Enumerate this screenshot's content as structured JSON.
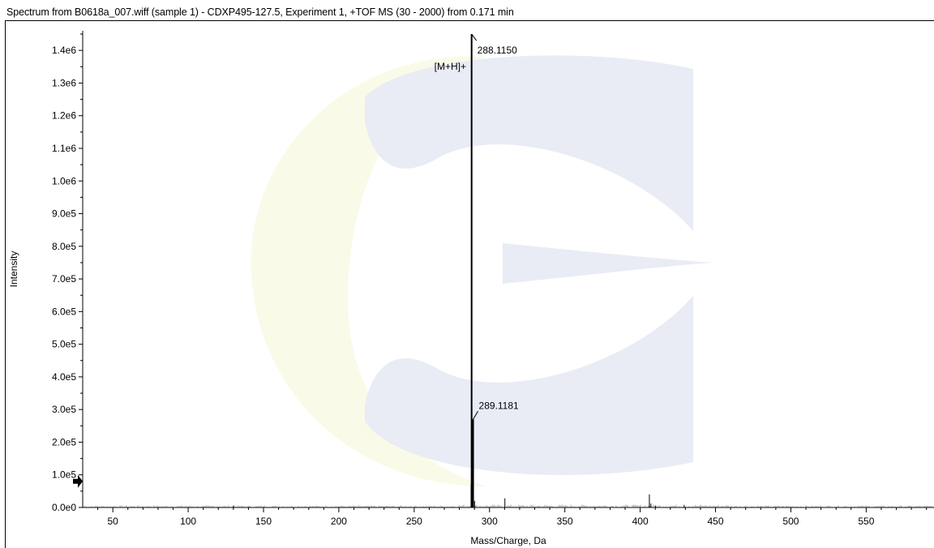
{
  "window": {
    "title": "Spectrum from B0618a_007.wiff (sample 1) - CDXP495-127.5, Experiment 1, +TOF MS (30 - 2000) from 0.171 min"
  },
  "colors": {
    "watermark_blue": "#e9ecf5",
    "watermark_yellow": "#fafae8",
    "trace": "#000000"
  },
  "icons": {
    "threshold_marker": "right-arrow-icon",
    "watermark": "company-logo-watermark"
  },
  "chart_data": {
    "type": "bar",
    "title": "",
    "xlabel": "Mass/Charge, Da",
    "ylabel": "Intensity",
    "xlim": [
      30,
      595
    ],
    "ylim": [
      0,
      1460000
    ],
    "grid": false,
    "x_ticks": [
      50,
      100,
      150,
      200,
      250,
      300,
      350,
      400,
      450,
      500,
      550
    ],
    "x_tick_labels": [
      "50",
      "100",
      "150",
      "200",
      "250",
      "300",
      "350",
      "400",
      "450",
      "500",
      "550"
    ],
    "y_ticks": [
      0,
      100000,
      200000,
      300000,
      400000,
      500000,
      600000,
      700000,
      800000,
      900000,
      1000000,
      1100000,
      1200000,
      1300000,
      1400000
    ],
    "y_tick_labels": [
      "0.0e0",
      "1.0e5",
      "2.0e5",
      "3.0e5",
      "4.0e5",
      "5.0e5",
      "6.0e5",
      "7.0e5",
      "8.0e5",
      "9.0e5",
      "1.0e6",
      "1.1e6",
      "1.2e6",
      "1.3e6",
      "1.4e6"
    ],
    "threshold_marker_y": 80000,
    "peaks": [
      {
        "mz": 287.8,
        "intensity": 70000
      },
      {
        "mz": 288.115,
        "intensity": 1450000
      },
      {
        "mz": 289.1181,
        "intensity": 270000
      },
      {
        "mz": 290.1,
        "intensity": 20000
      },
      {
        "mz": 310.2,
        "intensity": 28000
      },
      {
        "mz": 406.1,
        "intensity": 40000
      },
      {
        "mz": 407.1,
        "intensity": 12000
      },
      {
        "mz": 130.1,
        "intensity": 6000
      },
      {
        "mz": 429.2,
        "intensity": 8000
      },
      {
        "mz": 410.3,
        "intensity": 6000
      }
    ],
    "annotations": [
      {
        "text": "288.1150",
        "mz": 288.115
      },
      {
        "text": "289.1181",
        "mz": 289.1181
      },
      {
        "text": "[M+H]+",
        "mz": 288.115
      }
    ]
  }
}
